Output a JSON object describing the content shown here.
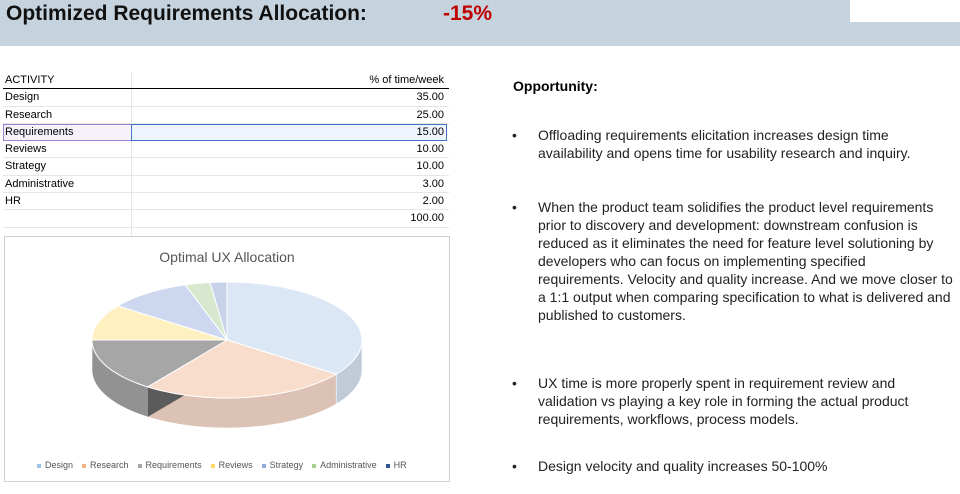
{
  "header": {
    "title": "Optimized Requirements Allocation:",
    "delta": "-15%"
  },
  "table": {
    "col_activity": "ACTIVITY",
    "col_pct": "% of time/week",
    "rows": [
      {
        "activity": "Design",
        "pct": "35.00"
      },
      {
        "activity": "Research",
        "pct": "25.00"
      },
      {
        "activity": "Requirements",
        "pct": "15.00"
      },
      {
        "activity": "Reviews",
        "pct": "10.00"
      },
      {
        "activity": "Strategy",
        "pct": "10.00"
      },
      {
        "activity": "Administrative",
        "pct": "3.00"
      },
      {
        "activity": "HR",
        "pct": "2.00"
      }
    ],
    "total": "100.00",
    "selected_row": "Requirements"
  },
  "chart_data": {
    "type": "pie",
    "title": "Optimal UX Allocation",
    "categories": [
      "Design",
      "Research",
      "Requirements",
      "Reviews",
      "Strategy",
      "Administrative",
      "HR"
    ],
    "values": [
      35,
      25,
      15,
      10,
      10,
      3,
      2
    ],
    "colors": [
      "#dbe7f5",
      "#f9ddcc",
      "#a6a6a6",
      "#fff0c0",
      "#cdd8f0",
      "#d8e8cf",
      "#c8d2e8"
    ],
    "legend_colors": [
      "#9dc3e6",
      "#f4b183",
      "#a6a6a6",
      "#ffd966",
      "#8faadc",
      "#a9d18e",
      "#2f5597"
    ],
    "legend_position": "bottom",
    "style": "3d"
  },
  "opportunity": {
    "heading": "Opportunity:",
    "bullets": [
      "Offloading requirements elicitation increases design time availability and opens time for usability research and inquiry.",
      "When the product team solidifies the product level requirements prior to discovery and development: downstream confusion is reduced as it eliminates the need for feature level solutioning by developers who can focus on implementing specified requirements.  Velocity and quality increase.  And we move closer to a 1:1 output when comparing specification to what is delivered and published to customers.",
      "UX time is more properly spent in requirement review and validation vs playing a key role in forming the actual product requirements, workflows, process models.",
      "Design velocity and quality increases 50-100%"
    ],
    "bullet_char": "•"
  }
}
